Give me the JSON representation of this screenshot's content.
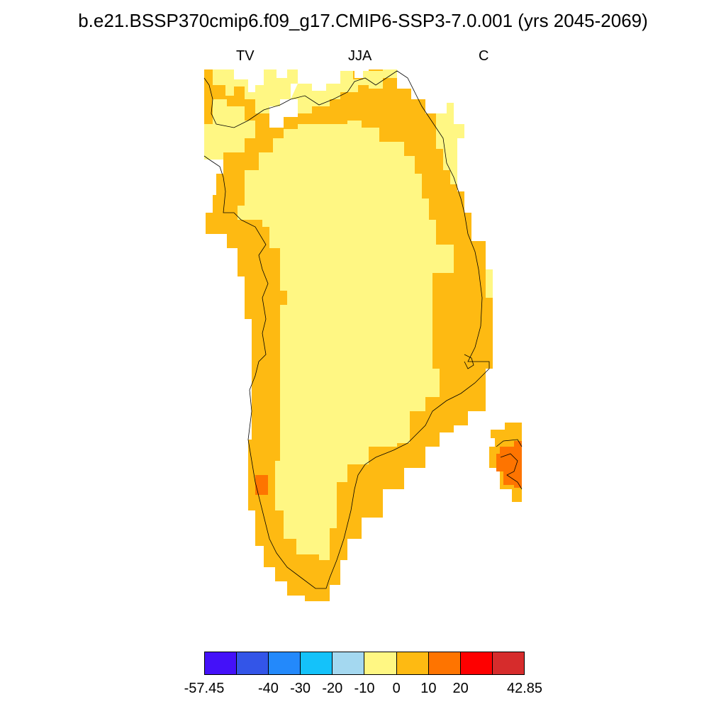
{
  "header": {
    "title": "b.e21.BSSP370cmip6.f09_g17.CMIP6-SSP3-7.0.001 (yrs 2045-2069)",
    "left": "TV",
    "center": "JJA",
    "right": "C"
  },
  "colorbar": {
    "colors": [
      "#4411f9",
      "#3355e8",
      "#2389fb",
      "#14c2fa",
      "#a4d8f0",
      "#fff783",
      "#feba12",
      "#fe7400",
      "#fe0000",
      "#d62c2c"
    ],
    "labels": [
      {
        "text": "-57.45",
        "boundary": 0
      },
      {
        "text": "-40",
        "boundary": 2
      },
      {
        "text": "-30",
        "boundary": 3
      },
      {
        "text": "-20",
        "boundary": 4
      },
      {
        "text": "-10",
        "boundary": 5
      },
      {
        "text": "0",
        "boundary": 6
      },
      {
        "text": "10",
        "boundary": 7
      },
      {
        "text": "20",
        "boundary": 8
      },
      {
        "text": "42.85",
        "boundary": 10
      }
    ]
  },
  "map": {
    "region": "Greenland",
    "fill_colors": {
      "interior": "#fff783",
      "margin": "#feba12",
      "hot": "#fe7400",
      "cool": "#fff783"
    }
  }
}
